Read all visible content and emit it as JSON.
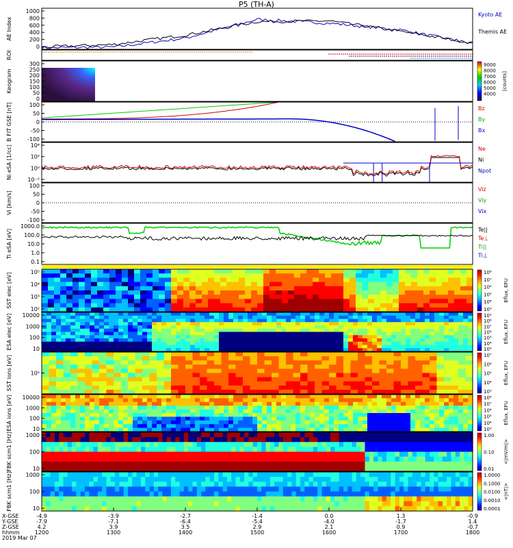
{
  "title": "P5 (TH-A)",
  "panels": {
    "ae": {
      "ylabel": "AE Index",
      "yticks": [
        "1000",
        "800",
        "600",
        "400",
        "200",
        "0"
      ],
      "legend": [
        {
          "label": "Kyoto AE",
          "color": "#0000cc"
        },
        {
          "label": "Themis AE",
          "color": "#000000"
        }
      ]
    },
    "roi": {
      "ylabel": "ROI"
    },
    "keogram": {
      "ylabel": "Keogram",
      "yticks": [
        "300",
        "250",
        "200",
        "150",
        "100",
        "50",
        "0"
      ],
      "cbar_ticks": [
        "9000",
        "8000",
        "7000",
        "6000",
        "5000",
        "4000"
      ],
      "cbar_label": "[counts]"
    },
    "bfit": {
      "ylabel": "B FIT GSE [nT]",
      "yticks": [
        "100",
        "50",
        "0",
        "-50",
        "-100"
      ],
      "legend": [
        {
          "label": "Bz",
          "color": "#cc0000"
        },
        {
          "label": "By",
          "color": "#00aa00"
        },
        {
          "label": "Bx",
          "color": "#0000cc"
        }
      ]
    },
    "ni": {
      "ylabel": "Ni eSA [1/cc]",
      "yticks": [
        "10⁴",
        "10²",
        "10⁰",
        "10⁻²"
      ],
      "legend": [
        {
          "label": "Ne",
          "color": "#cc0000"
        },
        {
          "label": "Ni",
          "color": "#000000"
        },
        {
          "label": "Npot",
          "color": "#0000cc"
        }
      ]
    },
    "vi": {
      "ylabel": "Vi [km/s]",
      "yticks": [
        "100",
        "50",
        "0",
        "-50",
        "-100"
      ],
      "legend": [
        {
          "label": "Viz",
          "color": "#cc0000"
        },
        {
          "label": "Viy",
          "color": "#00aa00"
        },
        {
          "label": "Vix",
          "color": "#0000cc"
        }
      ]
    },
    "ti": {
      "ylabel": "Ti eSA [eV]",
      "yticks": [
        "1000.0",
        "100.0",
        "10.0",
        "1.0",
        "0.1"
      ],
      "legend": [
        {
          "label": "Te||",
          "color": "#000000"
        },
        {
          "label": "Te⊥",
          "color": "#cc0000"
        },
        {
          "label": "Ti||",
          "color": "#00aa00"
        },
        {
          "label": "Ti⊥",
          "color": "#0000cc"
        }
      ]
    },
    "sst_e": {
      "ylabel": "SST elec [eV]",
      "yticks": [
        "10⁵",
        "10⁴",
        "10³",
        "10²"
      ],
      "cbar_label": "Eflux, EFU",
      "cbar_ticks": [
        "10⁸",
        "10⁷",
        "10⁶",
        "10⁵",
        "10⁴",
        "10³"
      ]
    },
    "esa_e": {
      "ylabel": "ESA elec [eV]",
      "yticks": [
        "10000",
        "1000",
        "100",
        "10"
      ],
      "cbar_label": "Eflux, EFU",
      "cbar_ticks": [
        "10⁹",
        "10⁸",
        "10⁷",
        "10⁶",
        "10⁵",
        "10⁴",
        "10³"
      ]
    },
    "sst_i": {
      "ylabel": "SST ions [eV]",
      "yticks": [
        "10⁵"
      ],
      "cbar_label": "Eflux, EFU",
      "cbar_ticks": [
        "10⁷",
        "10⁶",
        "10⁵",
        "10⁴",
        "10³"
      ]
    },
    "esa_i": {
      "ylabel": "ESA ions [eV]",
      "yticks": [
        "10000",
        "1000",
        "100",
        "10"
      ],
      "cbar_label": "Eflux, EFU",
      "cbar_ticks": [
        "10⁸",
        "10⁷",
        "10⁶",
        "10⁵",
        "10⁴",
        "10³"
      ]
    },
    "fbk_b": {
      "ylabel": "FBK scm1 [Hz]",
      "yticks": [
        "1000",
        "100",
        "10"
      ],
      "cbar_label": "<|mV/m|>",
      "cbar_ticks": [
        "1.00",
        "0.10",
        "0.01"
      ]
    },
    "fbk_e": {
      "ylabel": "FBK scm1 [Hz]",
      "yticks": [
        "1000",
        "100",
        "10"
      ],
      "cbar_label": "<|nT|>",
      "cbar_ticks": [
        "1.0000",
        "0.1000",
        "0.0100",
        "0.0010",
        "0.0001"
      ]
    }
  },
  "xaxis": {
    "row_labels": [
      "X-GSE",
      "Y-GSE",
      "Z-GSE",
      "hhmm",
      "2019 Mar 07"
    ],
    "columns": [
      {
        "values": [
          "-4.9",
          "-7.9",
          "4.2",
          "1200"
        ]
      },
      {
        "values": [
          "-3.9",
          "-7.1",
          "3.9",
          "1300"
        ]
      },
      {
        "values": [
          "-2.7",
          "-6.4",
          "3.5",
          "1400"
        ]
      },
      {
        "values": [
          "-1.4",
          "-5.4",
          "2.9",
          "1500"
        ]
      },
      {
        "values": [
          "0.0",
          "-4.0",
          "2.1",
          "1600"
        ]
      },
      {
        "values": [
          "1.3",
          "-1.7",
          "0.9",
          "1700"
        ]
      },
      {
        "values": [
          "-0.9",
          "1.4",
          "-0.7",
          "1800"
        ]
      }
    ]
  },
  "chart_data": {
    "type": "line",
    "title": "P5 (TH-A)",
    "x_unit": "hhmm",
    "x": [
      "1200",
      "1300",
      "1400",
      "1500",
      "1600",
      "1700",
      "1800"
    ],
    "series": [
      {
        "name": "Kyoto AE",
        "values": [
          40,
          60,
          300,
          800,
          700,
          520,
          150
        ]
      },
      {
        "name": "Themis AE",
        "values": [
          60,
          130,
          380,
          740,
          760,
          480,
          170
        ]
      }
    ],
    "ylabel": "AE Index",
    "ylim": [
      0,
      1100
    ]
  }
}
